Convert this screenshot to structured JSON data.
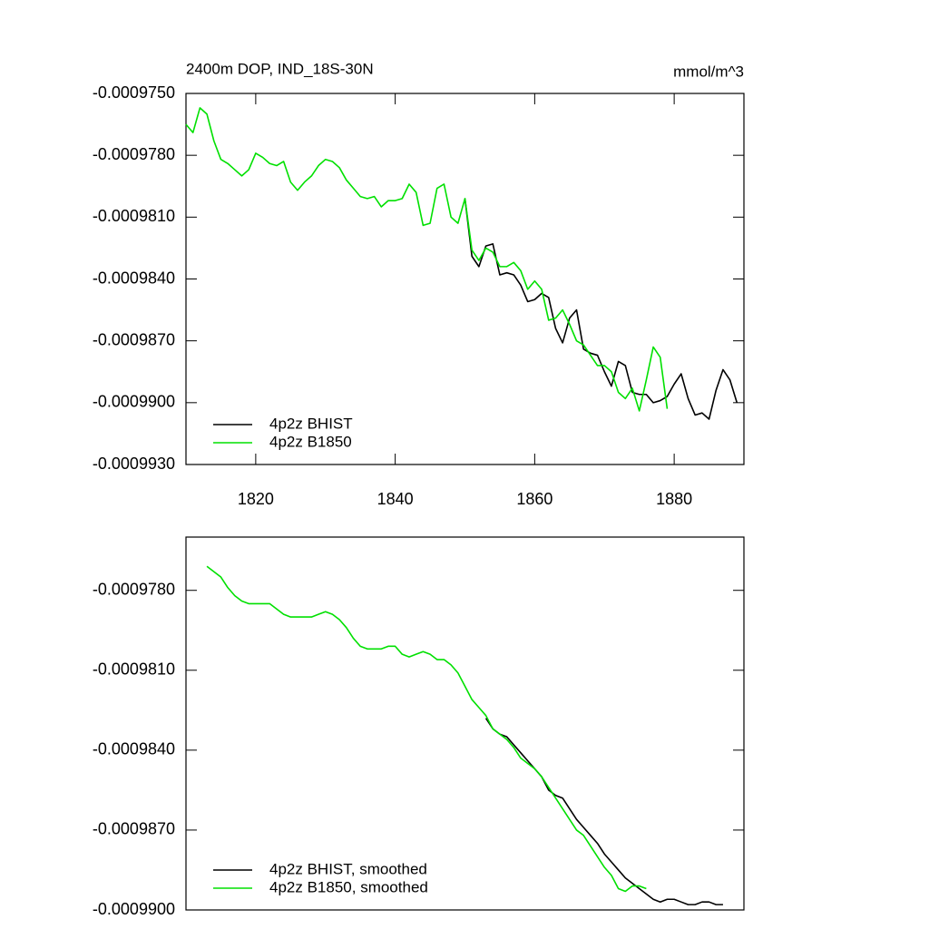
{
  "chart_data": [
    {
      "type": "line",
      "title": "2400m DOP, IND_18S-30N",
      "units": "mmol/m^3",
      "legend": "lower left",
      "x": [
        1810,
        1811,
        1812,
        1813,
        1814,
        1815,
        1816,
        1817,
        1818,
        1819,
        1820,
        1821,
        1822,
        1823,
        1824,
        1825,
        1826,
        1827,
        1828,
        1829,
        1830,
        1831,
        1832,
        1833,
        1834,
        1835,
        1836,
        1837,
        1838,
        1839,
        1840,
        1841,
        1842,
        1843,
        1844,
        1845,
        1846,
        1847,
        1848,
        1849,
        1850,
        1851,
        1852,
        1853,
        1854,
        1855,
        1856,
        1857,
        1858,
        1859,
        1860,
        1861,
        1862,
        1863,
        1864,
        1865,
        1866,
        1867,
        1868,
        1869,
        1870,
        1871,
        1872,
        1873,
        1874,
        1875,
        1876,
        1877,
        1878,
        1879,
        1880,
        1881,
        1882,
        1883,
        1884,
        1885,
        1886,
        1887,
        1888,
        1889
      ],
      "series": [
        {
          "name": "4p2z BHIST",
          "color": "#000000",
          "values": [
            null,
            null,
            null,
            null,
            null,
            null,
            null,
            null,
            null,
            null,
            null,
            null,
            null,
            null,
            null,
            null,
            null,
            null,
            null,
            null,
            null,
            null,
            null,
            null,
            null,
            null,
            null,
            null,
            null,
            null,
            null,
            null,
            null,
            null,
            null,
            null,
            null,
            null,
            null,
            null,
            -0.0009801,
            -0.0009829,
            -0.0009834,
            -0.0009824,
            -0.0009823,
            -0.0009838,
            -0.0009837,
            -0.0009838,
            -0.0009843,
            -0.0009851,
            -0.000985,
            -0.0009847,
            -0.0009849,
            -0.0009864,
            -0.0009871,
            -0.0009859,
            -0.0009855,
            -0.0009874,
            -0.0009876,
            -0.0009877,
            -0.0009885,
            -0.0009892,
            -0.000988,
            -0.0009882,
            -0.0009895,
            -0.0009896,
            -0.0009896,
            -0.00099,
            -0.0009899,
            -0.0009897,
            -0.0009891,
            -0.0009886,
            -0.0009898,
            -0.0009906,
            -0.0009905,
            -0.0009908,
            -0.0009894,
            -0.0009884,
            -0.0009889,
            -0.00099
          ]
        },
        {
          "name": "4p2z B1850",
          "color": "#00e000",
          "values": [
            -0.0009765,
            -0.0009769,
            -0.0009757,
            -0.000976,
            -0.0009773,
            -0.0009782,
            -0.0009784,
            -0.0009787,
            -0.000979,
            -0.0009787,
            -0.0009779,
            -0.0009781,
            -0.0009784,
            -0.0009785,
            -0.0009783,
            -0.0009793,
            -0.0009797,
            -0.0009793,
            -0.000979,
            -0.0009785,
            -0.0009782,
            -0.0009783,
            -0.0009786,
            -0.0009792,
            -0.0009796,
            -0.00098,
            -0.0009801,
            -0.00098,
            -0.0009805,
            -0.0009802,
            -0.0009802,
            -0.0009801,
            -0.0009794,
            -0.0009798,
            -0.0009814,
            -0.0009813,
            -0.0009796,
            -0.0009794,
            -0.000981,
            -0.0009813,
            -0.0009801,
            -0.0009826,
            -0.0009831,
            -0.0009825,
            -0.0009827,
            -0.0009834,
            -0.0009834,
            -0.0009832,
            -0.0009836,
            -0.0009845,
            -0.0009841,
            -0.0009845,
            -0.000986,
            -0.0009859,
            -0.0009855,
            -0.0009862,
            -0.000987,
            -0.0009872,
            -0.0009877,
            -0.0009882,
            -0.0009882,
            -0.0009885,
            -0.0009895,
            -0.0009898,
            -0.0009893,
            -0.0009904,
            -0.0009889,
            -0.0009873,
            -0.0009878,
            -0.0009903,
            null,
            null,
            null,
            null,
            null,
            null,
            null,
            null,
            null,
            null
          ]
        }
      ],
      "xlim": [
        1810,
        1890
      ],
      "xticks": [
        1820,
        1840,
        1860,
        1880
      ],
      "ylim": [
        -0.000993,
        -0.000975
      ],
      "yticks": [
        {
          "value": -0.000975,
          "label": "-0.0009750"
        },
        {
          "value": -0.000978,
          "label": "-0.0009780"
        },
        {
          "value": -0.000981,
          "label": "-0.0009810"
        },
        {
          "value": -0.000984,
          "label": "-0.0009840"
        },
        {
          "value": -0.000987,
          "label": "-0.0009870"
        },
        {
          "value": -0.00099,
          "label": "-0.0009900"
        },
        {
          "value": -0.000993,
          "label": "-0.0009930"
        }
      ]
    },
    {
      "type": "line",
      "legend": "lower left",
      "x": [
        1813,
        1814,
        1815,
        1816,
        1817,
        1818,
        1819,
        1820,
        1821,
        1822,
        1823,
        1824,
        1825,
        1826,
        1827,
        1828,
        1829,
        1830,
        1831,
        1832,
        1833,
        1834,
        1835,
        1836,
        1837,
        1838,
        1839,
        1840,
        1841,
        1842,
        1843,
        1844,
        1845,
        1846,
        1847,
        1848,
        1849,
        1850,
        1851,
        1852,
        1853,
        1854,
        1855,
        1856,
        1857,
        1858,
        1859,
        1860,
        1861,
        1862,
        1863,
        1864,
        1865,
        1866,
        1867,
        1868,
        1869,
        1870,
        1871,
        1872,
        1873,
        1874,
        1875,
        1876,
        1877,
        1878,
        1879,
        1880,
        1881,
        1882,
        1883,
        1884,
        1885,
        1886,
        1887
      ],
      "series": [
        {
          "name": "4p2z BHIST, smoothed",
          "color": "#000000",
          "values": [
            null,
            null,
            null,
            null,
            null,
            null,
            null,
            null,
            null,
            null,
            null,
            null,
            null,
            null,
            null,
            null,
            null,
            null,
            null,
            null,
            null,
            null,
            null,
            null,
            null,
            null,
            null,
            null,
            null,
            null,
            null,
            null,
            null,
            null,
            null,
            null,
            null,
            null,
            null,
            null,
            -0.0009828,
            -0.0009832,
            -0.0009834,
            -0.0009835,
            -0.0009838,
            -0.0009841,
            -0.0009844,
            -0.0009847,
            -0.000985,
            -0.0009855,
            -0.0009857,
            -0.0009858,
            -0.0009862,
            -0.0009866,
            -0.0009869,
            -0.0009872,
            -0.0009875,
            -0.0009879,
            -0.0009882,
            -0.0009885,
            -0.0009888,
            -0.000989,
            -0.0009892,
            -0.0009894,
            -0.0009896,
            -0.0009897,
            -0.0009896,
            -0.0009896,
            -0.0009897,
            -0.0009898,
            -0.0009898,
            -0.0009897,
            -0.0009897,
            -0.0009898,
            -0.0009898
          ]
        },
        {
          "name": "4p2z B1850, smoothed",
          "color": "#00e000",
          "values": [
            -0.0009771,
            -0.0009773,
            -0.0009775,
            -0.0009779,
            -0.0009782,
            -0.0009784,
            -0.0009785,
            -0.0009785,
            -0.0009785,
            -0.0009785,
            -0.0009787,
            -0.0009789,
            -0.000979,
            -0.000979,
            -0.000979,
            -0.000979,
            -0.0009789,
            -0.0009788,
            -0.0009789,
            -0.0009791,
            -0.0009794,
            -0.0009798,
            -0.0009801,
            -0.0009802,
            -0.0009802,
            -0.0009802,
            -0.0009801,
            -0.0009801,
            -0.0009804,
            -0.0009805,
            -0.0009804,
            -0.0009803,
            -0.0009804,
            -0.0009806,
            -0.0009806,
            -0.0009808,
            -0.0009811,
            -0.0009816,
            -0.0009821,
            -0.0009824,
            -0.0009827,
            -0.0009832,
            -0.0009834,
            -0.0009836,
            -0.0009839,
            -0.0009843,
            -0.0009845,
            -0.0009847,
            -0.000985,
            -0.0009854,
            -0.0009858,
            -0.0009862,
            -0.0009866,
            -0.000987,
            -0.0009872,
            -0.0009876,
            -0.000988,
            -0.0009884,
            -0.0009887,
            -0.0009892,
            -0.0009893,
            -0.0009891,
            -0.0009891,
            -0.0009892,
            null,
            null,
            null,
            null,
            null,
            null,
            null,
            null,
            null,
            null,
            null
          ]
        }
      ],
      "xlim": [
        1810,
        1890
      ],
      "ylim": [
        -0.00099,
        -0.000976
      ],
      "yticks": [
        {
          "value": -0.000978,
          "label": "-0.0009780"
        },
        {
          "value": -0.000981,
          "label": "-0.0009810"
        },
        {
          "value": -0.000984,
          "label": "-0.0009840"
        },
        {
          "value": -0.000987,
          "label": "-0.0009870"
        },
        {
          "value": -0.00099,
          "label": "-0.0009900"
        }
      ]
    }
  ]
}
